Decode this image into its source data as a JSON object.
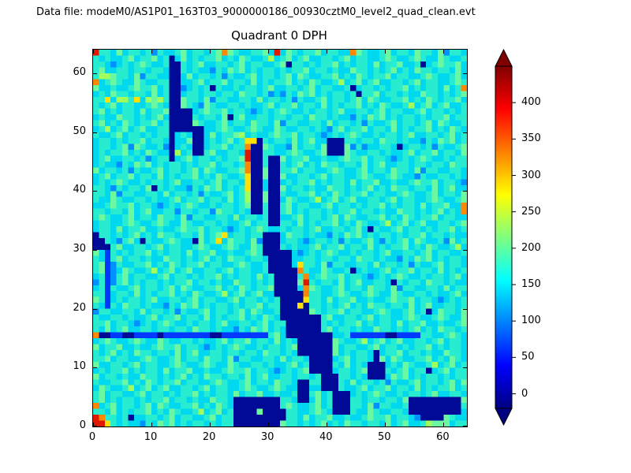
{
  "header": {
    "data_file": "Data file: modeM0/AS1P01_163T03_9000000186_00930cztM0_level2_quad_clean.evt"
  },
  "chart_data": {
    "type": "heatmap",
    "title": "Quadrant 0 DPH",
    "xlabel": "",
    "ylabel": "",
    "x_range": [
      0,
      64
    ],
    "y_range": [
      0,
      64
    ],
    "x_ticks": [
      0,
      10,
      20,
      30,
      40,
      50,
      60
    ],
    "y_ticks": [
      0,
      10,
      20,
      30,
      40,
      50,
      60
    ],
    "grid_size": 64,
    "colormap": "jet",
    "description": "64x64 detector plane histogram; background counts ~150-210 (cyan/turquoise) with low-count navy blobs and high-count yellow/orange/red spots",
    "value_key": {
      "0": 5,
      "1": 60,
      "2": 110,
      "3": 150,
      "4": 175,
      "5": 205,
      "6": 240,
      "7": 300,
      "8": 350,
      "9": 430
    },
    "palette": {
      "0": "#000a96",
      "1": "#0038ff",
      "2": "#0090ff",
      "3": "#00d8f0",
      "4": "#28ecd0",
      "5": "#6cf8a0",
      "6": "#a0ff5c",
      "7": "#ffe000",
      "8": "#ff8800",
      "9": "#e01800"
    },
    "background": {
      "templates": [
        "3443534434243345344345354334453435434453443345433453443544352443",
        "4334543354334434334534453443534344534354334634534533443453443345",
        "3445343443534453343345445344323434543343443453344345344334534434",
        "5343443434453443433544343453435443443534533443443443544343324354"
      ],
      "row_shift": 13
    },
    "features": [
      [
        1,
        15,
        2,
        1,
        "0"
      ],
      [
        3,
        15,
        27,
        1,
        "1"
      ],
      [
        5,
        15,
        2,
        1,
        "0"
      ],
      [
        11,
        15,
        1,
        1,
        "0"
      ],
      [
        20,
        15,
        2,
        1,
        "0"
      ],
      [
        44,
        15,
        12,
        1,
        "1"
      ],
      [
        50,
        15,
        2,
        1,
        "0"
      ],
      [
        2,
        20,
        1,
        10,
        "1"
      ],
      [
        3,
        24,
        1,
        4,
        "2"
      ],
      [
        13,
        45,
        1,
        18,
        "0"
      ],
      [
        14,
        54,
        1,
        8,
        "0"
      ],
      [
        13,
        50,
        4,
        4,
        "0"
      ],
      [
        17,
        46,
        2,
        5,
        "0"
      ],
      [
        27,
        36,
        2,
        13,
        "0"
      ],
      [
        30,
        34,
        2,
        12,
        "0"
      ],
      [
        29,
        29,
        3,
        4,
        "0"
      ],
      [
        30,
        26,
        4,
        4,
        "0"
      ],
      [
        31,
        22,
        4,
        5,
        "0"
      ],
      [
        32,
        18,
        5,
        5,
        "0"
      ],
      [
        33,
        15,
        6,
        4,
        "0"
      ],
      [
        35,
        12,
        6,
        4,
        "0"
      ],
      [
        37,
        9,
        4,
        3,
        "0"
      ],
      [
        39,
        6,
        3,
        3,
        "0"
      ],
      [
        35,
        4,
        2,
        4,
        "0"
      ],
      [
        24,
        0,
        8,
        5,
        "0"
      ],
      [
        32,
        1,
        1,
        2,
        "0"
      ],
      [
        28,
        2,
        1,
        1,
        "5"
      ],
      [
        54,
        2,
        9,
        3,
        "0"
      ],
      [
        56,
        1,
        4,
        1,
        "0"
      ],
      [
        41,
        2,
        3,
        4,
        "0"
      ],
      [
        47,
        8,
        3,
        3,
        "0"
      ],
      [
        48,
        11,
        1,
        2,
        "0"
      ],
      [
        40,
        46,
        3,
        3,
        "0"
      ],
      [
        0,
        30,
        1,
        3,
        "0"
      ],
      [
        1,
        30,
        1,
        2,
        "0"
      ],
      [
        2,
        30,
        1,
        1,
        "0"
      ],
      [
        26,
        38,
        1,
        2,
        "6"
      ],
      [
        26,
        40,
        1,
        3,
        "7"
      ],
      [
        26,
        43,
        1,
        2,
        "8"
      ],
      [
        26,
        45,
        1,
        2,
        "9"
      ],
      [
        26,
        47,
        1,
        1,
        "8"
      ],
      [
        26,
        48,
        2,
        1,
        "7"
      ],
      [
        35,
        27,
        1,
        1,
        "7"
      ],
      [
        35,
        26,
        1,
        1,
        "8"
      ],
      [
        36,
        25,
        1,
        1,
        "8"
      ],
      [
        36,
        24,
        1,
        1,
        "9"
      ],
      [
        36,
        23,
        1,
        1,
        "8"
      ],
      [
        36,
        22,
        1,
        1,
        "8"
      ],
      [
        36,
        21,
        1,
        1,
        "7"
      ],
      [
        35,
        20,
        1,
        1,
        "7"
      ],
      [
        0,
        0,
        2,
        1,
        "9"
      ],
      [
        0,
        1,
        1,
        1,
        "9"
      ],
      [
        1,
        1,
        1,
        1,
        "8"
      ],
      [
        2,
        0,
        1,
        1,
        "7"
      ],
      [
        0,
        3,
        1,
        1,
        "8"
      ],
      [
        0,
        15,
        1,
        1,
        "8"
      ],
      [
        0,
        58,
        1,
        1,
        "8"
      ],
      [
        1,
        59,
        2,
        1,
        "6"
      ],
      [
        0,
        63,
        1,
        1,
        "9"
      ],
      [
        22,
        63,
        1,
        1,
        "8"
      ],
      [
        31,
        63,
        1,
        1,
        "9"
      ],
      [
        44,
        63,
        1,
        1,
        "8"
      ],
      [
        63,
        36,
        1,
        2,
        "8"
      ],
      [
        63,
        57,
        1,
        1,
        "8"
      ],
      [
        57,
        0,
        1,
        1,
        "6"
      ],
      [
        58,
        0,
        3,
        1,
        "5"
      ],
      [
        21,
        31,
        1,
        1,
        "7"
      ],
      [
        22,
        32,
        1,
        1,
        "7"
      ],
      [
        2,
        55,
        1,
        1,
        "7"
      ],
      [
        4,
        55,
        2,
        1,
        "6"
      ],
      [
        7,
        55,
        1,
        1,
        "7"
      ],
      [
        9,
        55,
        1,
        1,
        "6"
      ],
      [
        11,
        55,
        1,
        1,
        "6"
      ],
      [
        25,
        49,
        1,
        1,
        "6"
      ],
      [
        33,
        61,
        1,
        1,
        "0"
      ],
      [
        56,
        61,
        1,
        1,
        "0"
      ],
      [
        20,
        57,
        1,
        1,
        "0"
      ],
      [
        44,
        57,
        1,
        1,
        "0"
      ],
      [
        45,
        56,
        1,
        1,
        "0"
      ],
      [
        23,
        52,
        1,
        1,
        "0"
      ],
      [
        52,
        47,
        1,
        1,
        "0"
      ],
      [
        47,
        33,
        1,
        1,
        "0"
      ],
      [
        44,
        26,
        1,
        1,
        "0"
      ],
      [
        51,
        24,
        1,
        1,
        "0"
      ],
      [
        57,
        19,
        1,
        1,
        "0"
      ],
      [
        8,
        31,
        1,
        1,
        "0"
      ],
      [
        17,
        31,
        1,
        1,
        "0"
      ],
      [
        57,
        9,
        1,
        1,
        "0"
      ],
      [
        6,
        1,
        1,
        1,
        "0"
      ],
      [
        10,
        40,
        1,
        1,
        "0"
      ],
      [
        18,
        54,
        1,
        1,
        "2"
      ],
      [
        40,
        50,
        1,
        1,
        "2"
      ],
      [
        9,
        45,
        1,
        1,
        "2"
      ],
      [
        55,
        42,
        1,
        1,
        "2"
      ],
      [
        3,
        40,
        1,
        1,
        "2"
      ],
      [
        14,
        36,
        1,
        1,
        "2"
      ],
      [
        20,
        36,
        1,
        1,
        "2"
      ],
      [
        30,
        56,
        1,
        1,
        "2"
      ],
      [
        6,
        47,
        1,
        1,
        "2"
      ],
      [
        12,
        47,
        1,
        1,
        "2"
      ],
      [
        33,
        47,
        1,
        1,
        "2"
      ],
      [
        46,
        47,
        1,
        1,
        "2"
      ],
      [
        58,
        47,
        1,
        1,
        "2"
      ],
      [
        4,
        31,
        1,
        1,
        "2"
      ],
      [
        36,
        31,
        1,
        1,
        "2"
      ],
      [
        49,
        31,
        1,
        1,
        "2"
      ],
      [
        60,
        31,
        1,
        1,
        "2"
      ]
    ],
    "colorbar": {
      "ticks": [
        0,
        50,
        100,
        150,
        200,
        250,
        300,
        350,
        400
      ],
      "vmin": -20,
      "vmax": 450,
      "extend": "both",
      "over_color": "#800000",
      "under_color": "#000080",
      "gradient": [
        {
          "offset": "0%",
          "color": "#000080"
        },
        {
          "offset": "12.5%",
          "color": "#0000ff"
        },
        {
          "offset": "37.5%",
          "color": "#00ffff"
        },
        {
          "offset": "62.5%",
          "color": "#ffff00"
        },
        {
          "offset": "87.5%",
          "color": "#ff0000"
        },
        {
          "offset": "100%",
          "color": "#800000"
        }
      ]
    }
  }
}
